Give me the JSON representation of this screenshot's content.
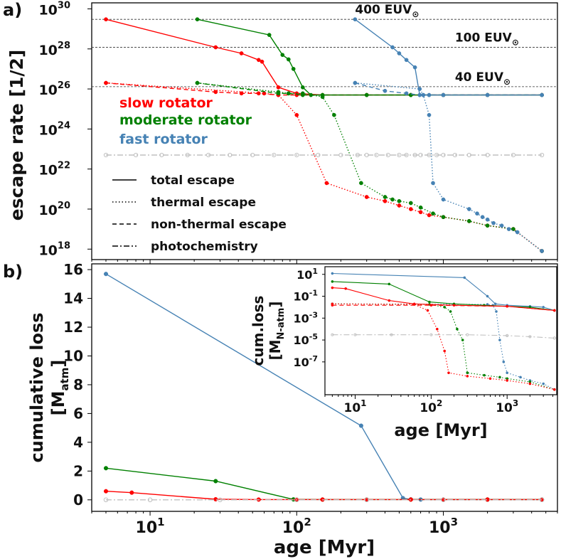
{
  "colors": {
    "slow": "#ff0000",
    "moderate": "#008000",
    "fast": "#4682b4",
    "photo": "#c0c0c0",
    "axis": "#000000"
  },
  "panel_labels": {
    "a": "a)",
    "b": "b)"
  },
  "chart_data": [
    {
      "id": "panel_a",
      "type": "line",
      "title": "",
      "xlabel": "",
      "ylabel": "escape rate [1/2]",
      "xscale": "log",
      "yscale": "log",
      "xlim": [
        4,
        6000
      ],
      "ylim": [
        3e+17,
        2e+30
      ],
      "ytick_labels": [
        {
          "base": "10",
          "exp": "30",
          "value": 1e+30
        },
        {
          "base": "10",
          "exp": "28",
          "value": 1e+28
        },
        {
          "base": "10",
          "exp": "26",
          "value": 1e+26
        },
        {
          "base": "10",
          "exp": "24",
          "value": 1e+24
        },
        {
          "base": "10",
          "exp": "22",
          "value": 1e+22
        },
        {
          "base": "10",
          "exp": "20",
          "value": 1e+20
        },
        {
          "base": "10",
          "exp": "18",
          "value": 1e+18
        }
      ],
      "reference_lines": [
        {
          "y": 3e+29,
          "label": "400 EUV",
          "sub": "⊙",
          "label_x": 250
        },
        {
          "y": 1.2e+28,
          "label": "100 EUV",
          "sub": "⊙",
          "label_x": 1200
        },
        {
          "y": 1.3e+26,
          "label": "40 EUV",
          "sub": "⊙",
          "label_x": 1200
        }
      ],
      "legend_rotators": [
        "slow rotator",
        "moderate rotator",
        "fast rotator"
      ],
      "legend_lines": [
        {
          "label": "total escape",
          "style": "solid"
        },
        {
          "label": "thermal escape",
          "style": "dotted"
        },
        {
          "label": "non-thermal escape",
          "style": "dashed"
        },
        {
          "label": "photochemistry",
          "style": "dashdot"
        }
      ],
      "series": [
        {
          "name": "slow total",
          "color": "slow",
          "style": "solid",
          "x": [
            5,
            28,
            42,
            55,
            58,
            75,
            100,
            150,
            300,
            600,
            1000,
            2000,
            4700
          ],
          "y": [
            3e+29,
            1.2e+28,
            6e+27,
            2.8e+27,
            2.3e+27,
            1.2e+26,
            6e+25,
            5e+25,
            5e+25,
            5e+25,
            5e+25,
            5e+25,
            5e+25
          ]
        },
        {
          "name": "slow thermal",
          "color": "slow",
          "style": "dotted",
          "x": [
            5,
            60,
            75,
            100,
            160,
            300,
            400,
            500,
            600,
            700,
            800,
            1000,
            1500,
            2000,
            3000,
            4700
          ],
          "y": [
            2e+26,
            6e+25,
            5e+25,
            5e+24,
            2e+21,
            4e+20,
            2.5e+20,
            1.5e+20,
            1e+20,
            7e+19,
            5e+19,
            4e+19,
            2.5e+19,
            1.5e+19,
            1e+19,
            8e+17
          ]
        },
        {
          "name": "slow non-thermal",
          "color": "slow",
          "style": "dashed",
          "x": [
            5,
            28,
            42,
            55,
            75,
            100,
            150,
            300,
            600,
            1000,
            2000,
            4700
          ],
          "y": [
            2e+26,
            7e+25,
            6e+25,
            6e+25,
            5e+25,
            5e+25,
            5e+25,
            5e+25,
            5e+25,
            5e+25,
            5e+25,
            5e+25
          ]
        },
        {
          "name": "moderate total",
          "color": "moderate",
          "style": "solid",
          "x": [
            21,
            65,
            80,
            88,
            95,
            110,
            125,
            150,
            300,
            600,
            1000,
            2000,
            4700
          ],
          "y": [
            3e+29,
            5e+28,
            5e+27,
            3e+27,
            1e+27,
            1.2e+26,
            5e+25,
            5e+25,
            5e+25,
            5e+25,
            5e+25,
            5e+25,
            5e+25
          ]
        },
        {
          "name": "moderate thermal",
          "color": "moderate",
          "style": "dotted",
          "x": [
            21,
            75,
            88,
            110,
            150,
            180,
            275,
            400,
            450,
            500,
            600,
            700,
            850,
            1000,
            1500,
            2000,
            3000,
            4700
          ],
          "y": [
            2e+26,
            7e+25,
            6e+25,
            6e+25,
            4e+25,
            5e+24,
            2e+21,
            4e+20,
            3e+20,
            2.5e+20,
            2e+20,
            1.2e+20,
            6e+19,
            4e+19,
            2.5e+19,
            1.5e+19,
            1e+19,
            8e+17
          ]
        },
        {
          "name": "moderate non-thermal",
          "color": "moderate",
          "style": "dashed",
          "x": [
            21,
            75,
            88,
            110,
            150,
            300,
            600,
            1000,
            2000,
            4700
          ],
          "y": [
            2e+26,
            6e+25,
            6e+25,
            5e+25,
            5e+25,
            5e+25,
            5e+25,
            5e+25,
            5e+25,
            5e+25
          ]
        },
        {
          "name": "fast total",
          "color": "fast",
          "style": "solid",
          "x": [
            250,
            450,
            500,
            560,
            640,
            690,
            730,
            800,
            1000,
            2000,
            4700
          ],
          "y": [
            3e+29,
            1.2e+28,
            6e+27,
            2.8e+27,
            1.2e+27,
            5e+25,
            5e+25,
            5e+25,
            5e+25,
            5e+25,
            5e+25
          ]
        },
        {
          "name": "fast thermal",
          "color": "fast",
          "style": "dotted",
          "x": [
            250,
            690,
            730,
            800,
            850,
            1000,
            1500,
            1700,
            1850,
            2000,
            2200,
            2500,
            2800,
            3200,
            4700
          ],
          "y": [
            2e+26,
            1e+26,
            5e+25,
            5e+24,
            2e+21,
            3e+20,
            1e+20,
            6e+19,
            4e+19,
            3e+19,
            2e+19,
            1.5e+19,
            1e+19,
            7e+18,
            8e+17
          ]
        },
        {
          "name": "fast non-thermal",
          "color": "fast",
          "style": "dashed",
          "x": [
            250,
            400,
            560,
            690,
            800,
            1000,
            2000,
            4700
          ],
          "y": [
            2e+26,
            8e+25,
            6e+25,
            5e+25,
            5e+25,
            5e+25,
            5e+25,
            5e+25
          ]
        },
        {
          "name": "photochemistry",
          "color": "photo",
          "style": "dashdot",
          "x": [
            5,
            8,
            12,
            18,
            25,
            35,
            50,
            70,
            100,
            140,
            200,
            260,
            300,
            350,
            420,
            500,
            560,
            640,
            700,
            800,
            900,
            1000,
            1200,
            1500,
            2000,
            3000,
            4700
          ],
          "y": [
            5e+22,
            5e+22,
            5e+22,
            5e+22,
            5e+22,
            5e+22,
            5e+22,
            5e+22,
            5e+22,
            5e+22,
            5e+22,
            5e+22,
            5e+22,
            5e+22,
            5e+22,
            5e+22,
            5e+22,
            5e+22,
            5e+22,
            5e+22,
            5e+22,
            5e+22,
            5e+22,
            5e+22,
            5e+22,
            5e+22,
            5e+22
          ]
        }
      ]
    },
    {
      "id": "panel_b",
      "type": "line",
      "xlabel": "age [Myr]",
      "ylabel_line1": "cumulative loss",
      "ylabel_line2": "[M",
      "ylabel_sub": "atm",
      "ylabel_end": "]",
      "xscale": "log",
      "yscale": "linear",
      "xlim": [
        4,
        6000
      ],
      "ylim": [
        -0.8,
        16.4
      ],
      "xtick_labels": [
        {
          "base": "10",
          "exp": "1",
          "value": 10
        },
        {
          "base": "10",
          "exp": "2",
          "value": 100
        },
        {
          "base": "10",
          "exp": "3",
          "value": 1000
        }
      ],
      "ytick_labels": [
        "0",
        "2",
        "4",
        "6",
        "8",
        "10",
        "12",
        "14",
        "16"
      ],
      "series": [
        {
          "name": "fast total",
          "color": "fast",
          "style": "solid",
          "x": [
            5,
            275,
            530,
            600,
            700,
            1000,
            2000,
            4700
          ],
          "y": [
            15.7,
            5.15,
            0.12,
            0.03,
            0.02,
            0.02,
            0.02,
            0.02
          ]
        },
        {
          "name": "moderate total",
          "color": "moderate",
          "style": "solid",
          "x": [
            5,
            28,
            95,
            150,
            300,
            600,
            1000,
            2000,
            4700
          ],
          "y": [
            2.2,
            1.3,
            0.03,
            0.02,
            0.02,
            0.02,
            0.02,
            0.02,
            0.02
          ]
        },
        {
          "name": "slow total",
          "color": "slow",
          "style": "solid",
          "x": [
            5,
            7.5,
            28,
            55,
            100,
            150,
            300,
            600,
            1000,
            2000,
            4700
          ],
          "y": [
            0.6,
            0.5,
            0.04,
            0.02,
            0.02,
            0.02,
            0.02,
            0.02,
            0.02,
            0.02,
            0.02
          ]
        },
        {
          "name": "photochemistry",
          "color": "photo",
          "style": "dashdot",
          "x": [
            5,
            10,
            30,
            100,
            300,
            1000,
            4700
          ],
          "y": [
            0.0,
            0.0,
            0.0,
            0.0,
            0.0,
            0.0,
            0.0
          ]
        }
      ]
    },
    {
      "id": "inset",
      "type": "line",
      "xlabel": "age [Myr]",
      "ylabel_line1": "cum.loss",
      "ylabel_line2": "[M",
      "ylabel_sub": "N-atm",
      "ylabel_end": "]",
      "xscale": "log",
      "yscale": "log",
      "xlim": [
        4,
        4500
      ],
      "ylim": [
        1e-10,
        50.0
      ],
      "ytick_labels": [
        {
          "base": "10",
          "exp": "1",
          "value": 10
        },
        {
          "base": "10",
          "exp": "-1",
          "value": 0.1
        },
        {
          "base": "10",
          "exp": "-3",
          "value": 0.001
        },
        {
          "base": "10",
          "exp": "-5",
          "value": 1e-05
        },
        {
          "base": "10",
          "exp": "-7",
          "value": 1e-07
        }
      ],
      "xtick_labels": [
        {
          "base": "10",
          "exp": "1",
          "value": 10
        },
        {
          "base": "10",
          "exp": "2",
          "value": 100
        },
        {
          "base": "10",
          "exp": "3",
          "value": 1000
        }
      ],
      "series": [
        {
          "name": "fast total",
          "color": "fast",
          "style": "solid",
          "x": [
            5,
            275,
            550,
            700,
            1000,
            2000,
            3000,
            4200
          ],
          "y": [
            12,
            5,
            0.1,
            0.02,
            0.015,
            0.012,
            0.01,
            0.005
          ]
        },
        {
          "name": "fast thermal",
          "color": "fast",
          "style": "dotted",
          "x": [
            5,
            550,
            650,
            720,
            800,
            900,
            1000,
            1500,
            2000,
            3000,
            4200
          ],
          "y": [
            0.02,
            0.018,
            0.015,
            0.004,
            1e-05,
            1e-07,
            1e-08,
            4e-09,
            2e-09,
            1e-09,
            3e-10
          ]
        },
        {
          "name": "moderate total",
          "color": "moderate",
          "style": "solid",
          "x": [
            5,
            28,
            95,
            200,
            500,
            1000,
            2000,
            4200
          ],
          "y": [
            2.2,
            1.3,
            0.03,
            0.02,
            0.015,
            0.012,
            0.01,
            0.005
          ]
        },
        {
          "name": "moderate thermal",
          "color": "moderate",
          "style": "dotted",
          "x": [
            5,
            95,
            150,
            180,
            220,
            260,
            300,
            500,
            800,
            1000,
            2000,
            4200
          ],
          "y": [
            0.02,
            0.018,
            0.01,
            0.004,
            0.0001,
            1e-05,
            1e-08,
            6e-09,
            4e-09,
            3e-09,
            1.5e-09,
            3e-10
          ]
        },
        {
          "name": "slow total",
          "color": "slow",
          "style": "solid",
          "x": [
            5,
            7.5,
            28,
            60,
            200,
            1000,
            4200
          ],
          "y": [
            0.6,
            0.5,
            0.04,
            0.02,
            0.015,
            0.012,
            0.005
          ]
        },
        {
          "name": "slow thermal",
          "color": "slow",
          "style": "dotted",
          "x": [
            5,
            60,
            90,
            120,
            150,
            170,
            300,
            600,
            1000,
            2000,
            4200
          ],
          "y": [
            0.02,
            0.018,
            0.005,
            0.0001,
            1e-06,
            1e-08,
            5e-09,
            3e-09,
            2e-09,
            1e-09,
            3e-10
          ]
        },
        {
          "name": "non-thermal",
          "color": "slow",
          "style": "dashed",
          "x": [
            5,
            100,
            1000,
            4200
          ],
          "y": [
            0.015,
            0.015,
            0.012,
            0.005
          ]
        },
        {
          "name": "photochemistry",
          "color": "photo",
          "style": "dashdot",
          "x": [
            5,
            10,
            30,
            100,
            300,
            1000,
            2000,
            4200
          ],
          "y": [
            3e-05,
            3e-05,
            3e-05,
            3e-05,
            3e-05,
            2.5e-05,
            2e-05,
            1.5e-05
          ]
        }
      ]
    }
  ]
}
